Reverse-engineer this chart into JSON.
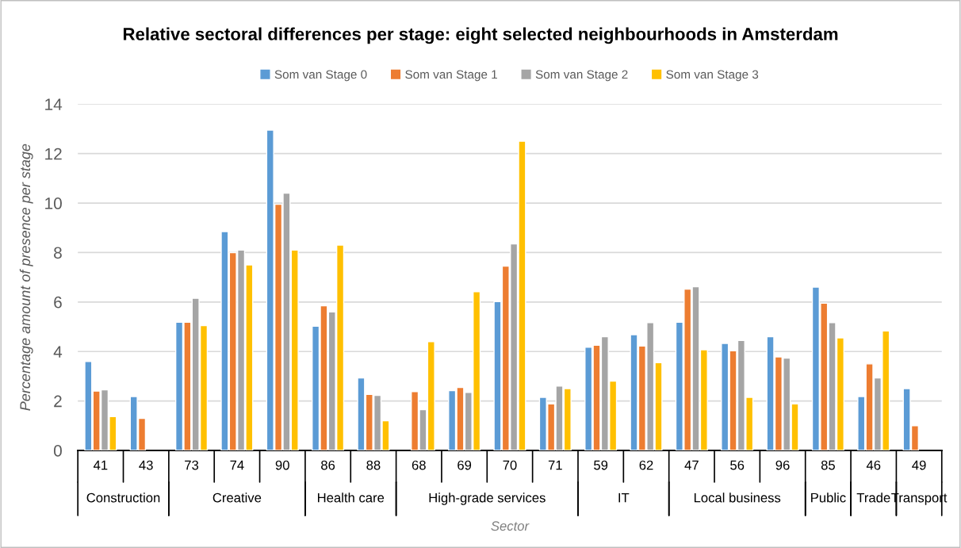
{
  "chart_data": {
    "type": "bar",
    "title": "Relative sectoral differences per stage: eight selected neighbourhoods in Amsterdam",
    "xlabel": "Sector",
    "ylabel": "Percentage amount of presence per stage",
    "categories": [
      "41",
      "43",
      "73",
      "74",
      "90",
      "86",
      "88",
      "68",
      "69",
      "70",
      "71",
      "59",
      "62",
      "47",
      "56",
      "96",
      "85",
      "46",
      "49"
    ],
    "series": [
      {
        "name": "Som van Stage 0",
        "color": "#5b9bd5",
        "values": [
          3.6,
          2.18,
          5.18,
          8.85,
          12.95,
          5.02,
          2.93,
          null,
          2.42,
          6.02,
          2.15,
          4.17,
          4.68,
          5.18,
          4.33,
          4.6,
          6.6,
          2.18,
          2.5
        ]
      },
      {
        "name": "Som van Stage 1",
        "color": "#ed7d31",
        "values": [
          2.4,
          1.3,
          5.18,
          8.0,
          9.95,
          5.85,
          2.27,
          2.38,
          2.55,
          7.45,
          1.88,
          4.25,
          4.22,
          6.52,
          4.03,
          3.78,
          5.95,
          3.5,
          1.0
        ]
      },
      {
        "name": "Som van Stage 2",
        "color": "#a5a5a5",
        "values": [
          2.45,
          null,
          6.15,
          8.1,
          10.4,
          5.6,
          2.23,
          1.65,
          2.35,
          8.35,
          2.6,
          4.6,
          5.17,
          6.62,
          4.45,
          3.73,
          5.17,
          2.93,
          null
        ]
      },
      {
        "name": "Som van Stage 3",
        "color": "#ffc000",
        "values": [
          1.37,
          null,
          5.05,
          7.5,
          8.1,
          8.3,
          1.2,
          4.4,
          6.42,
          12.5,
          2.5,
          2.8,
          3.55,
          4.07,
          2.15,
          1.88,
          4.55,
          4.83,
          null
        ]
      }
    ],
    "annotations": [
      "Construction",
      "Creative",
      "Health care",
      "High-grade services",
      "IT",
      "Local business",
      "Public",
      "Trade",
      "Transport"
    ],
    "ylim": [
      0,
      14
    ],
    "yticks": [
      0,
      2,
      4,
      6,
      8,
      10,
      12,
      14
    ],
    "grid": "y",
    "legend": "top"
  }
}
